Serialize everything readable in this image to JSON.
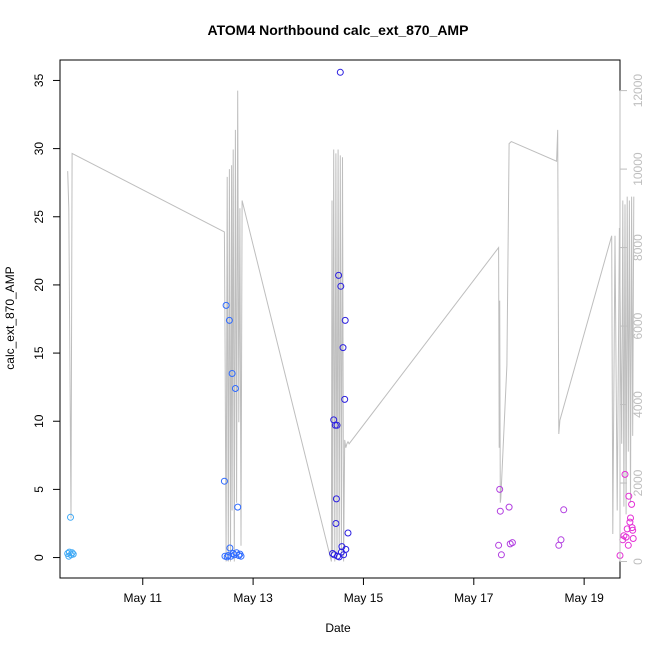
{
  "chart_data": {
    "type": "scatter",
    "title": "ATOM4 Northbound calc_ext_870_AMP",
    "xlabel": "Date",
    "ylabel": "calc_ext_870_AMP",
    "x_unit": "days since May 9 00:00",
    "xlim": [
      9.5,
      19.65
    ],
    "ylim": [
      -1.5,
      36.5
    ],
    "x_ticks": [
      {
        "value": 11,
        "label": "May 11"
      },
      {
        "value": 13,
        "label": "May 13"
      },
      {
        "value": 15,
        "label": "May 15"
      },
      {
        "value": 17,
        "label": "May 17"
      },
      {
        "value": 19,
        "label": "May 19"
      }
    ],
    "y_ticks": [
      0,
      5,
      10,
      15,
      20,
      25,
      30,
      35
    ],
    "y2_ticks": [
      0,
      2000,
      4000,
      6000,
      8000,
      10000,
      12000
    ],
    "y2_lim": [
      -420,
      12780
    ],
    "grid": false,
    "legend": "none",
    "colors": {
      "line": "#bebebe",
      "axis": "#000000",
      "axis2": "#bebebe"
    },
    "series": [
      {
        "name": "",
        "kind": "points",
        "points": [
          {
            "x": 9.64,
            "y": 0.3,
            "color": "#3fa9f5"
          },
          {
            "x": 9.66,
            "y": 0.1,
            "color": "#3fa9f5"
          },
          {
            "x": 9.67,
            "y": 0.4,
            "color": "#3fa9f5"
          },
          {
            "x": 9.69,
            "y": 2.95,
            "color": "#3fa9f5"
          },
          {
            "x": 9.7,
            "y": 0.2,
            "color": "#3fa9f5"
          },
          {
            "x": 9.72,
            "y": 0.35,
            "color": "#3fa9f5"
          },
          {
            "x": 9.74,
            "y": 0.25,
            "color": "#3fa9f5"
          },
          {
            "x": 12.48,
            "y": 5.6,
            "color": "#2f6bff"
          },
          {
            "x": 12.49,
            "y": 0.1,
            "color": "#2f6bff"
          },
          {
            "x": 12.51,
            "y": 18.5,
            "color": "#2f6bff"
          },
          {
            "x": 12.53,
            "y": 0.05,
            "color": "#2f6bff"
          },
          {
            "x": 12.55,
            "y": 0.15,
            "color": "#2f6bff"
          },
          {
            "x": 12.57,
            "y": 17.4,
            "color": "#2f6bff"
          },
          {
            "x": 12.58,
            "y": 0.7,
            "color": "#2f6bff"
          },
          {
            "x": 12.6,
            "y": 0.1,
            "color": "#2f6bff"
          },
          {
            "x": 12.62,
            "y": 13.5,
            "color": "#2f6bff"
          },
          {
            "x": 12.64,
            "y": 0.3,
            "color": "#2f6bff"
          },
          {
            "x": 12.66,
            "y": 0.2,
            "color": "#2f6bff"
          },
          {
            "x": 12.68,
            "y": 12.4,
            "color": "#2f6bff"
          },
          {
            "x": 12.7,
            "y": 0.35,
            "color": "#2f6bff"
          },
          {
            "x": 12.72,
            "y": 3.7,
            "color": "#2f6bff"
          },
          {
            "x": 12.74,
            "y": 0.15,
            "color": "#2f6bff"
          },
          {
            "x": 12.76,
            "y": 0.25,
            "color": "#2f6bff"
          },
          {
            "x": 12.78,
            "y": 0.1,
            "color": "#2f6bff"
          },
          {
            "x": 14.44,
            "y": 0.3,
            "color": "#2b1fe0"
          },
          {
            "x": 14.46,
            "y": 10.1,
            "color": "#2b1fe0"
          },
          {
            "x": 14.47,
            "y": 0.2,
            "color": "#2b1fe0"
          },
          {
            "x": 14.49,
            "y": 9.7,
            "color": "#2b1fe0"
          },
          {
            "x": 14.5,
            "y": 2.5,
            "color": "#2b1fe0"
          },
          {
            "x": 14.51,
            "y": 4.3,
            "color": "#2b1fe0"
          },
          {
            "x": 14.52,
            "y": 9.7,
            "color": "#2b1fe0"
          },
          {
            "x": 14.53,
            "y": 0.1,
            "color": "#2b1fe0"
          },
          {
            "x": 14.55,
            "y": 20.7,
            "color": "#2b1fe0"
          },
          {
            "x": 14.56,
            "y": 0.05,
            "color": "#2b1fe0"
          },
          {
            "x": 14.58,
            "y": 35.6,
            "color": "#2b1fe0"
          },
          {
            "x": 14.59,
            "y": 19.9,
            "color": "#2b1fe0"
          },
          {
            "x": 14.6,
            "y": 0.4,
            "color": "#2b1fe0"
          },
          {
            "x": 14.61,
            "y": 0.8,
            "color": "#2b1fe0"
          },
          {
            "x": 14.63,
            "y": 15.4,
            "color": "#2b1fe0"
          },
          {
            "x": 14.64,
            "y": 0.2,
            "color": "#2b1fe0"
          },
          {
            "x": 14.66,
            "y": 11.6,
            "color": "#2b1fe0"
          },
          {
            "x": 14.67,
            "y": 17.4,
            "color": "#2b1fe0"
          },
          {
            "x": 14.68,
            "y": 0.6,
            "color": "#2b1fe0"
          },
          {
            "x": 14.72,
            "y": 1.8,
            "color": "#2b1fe0"
          },
          {
            "x": 17.45,
            "y": 0.9,
            "color": "#b23fe0"
          },
          {
            "x": 17.47,
            "y": 5.0,
            "color": "#b23fe0"
          },
          {
            "x": 17.48,
            "y": 3.4,
            "color": "#b23fe0"
          },
          {
            "x": 17.5,
            "y": 0.2,
            "color": "#b23fe0"
          },
          {
            "x": 17.64,
            "y": 3.7,
            "color": "#b23fe0"
          },
          {
            "x": 17.66,
            "y": 1.0,
            "color": "#b23fe0"
          },
          {
            "x": 17.7,
            "y": 1.1,
            "color": "#b23fe0"
          },
          {
            "x": 18.54,
            "y": 0.9,
            "color": "#b23fe0"
          },
          {
            "x": 18.58,
            "y": 1.3,
            "color": "#b23fe0"
          },
          {
            "x": 18.63,
            "y": 3.5,
            "color": "#b23fe0"
          },
          {
            "x": 19.65,
            "y": 0.15,
            "color": "#e42fd6"
          },
          {
            "x": 19.7,
            "y": 1.3,
            "color": "#e42fd6"
          },
          {
            "x": 19.72,
            "y": 1.6,
            "color": "#e42fd6"
          },
          {
            "x": 19.74,
            "y": 6.1,
            "color": "#e42fd6"
          },
          {
            "x": 19.76,
            "y": 1.5,
            "color": "#e42fd6"
          },
          {
            "x": 19.78,
            "y": 2.1,
            "color": "#e42fd6"
          },
          {
            "x": 19.8,
            "y": 0.9,
            "color": "#e42fd6"
          },
          {
            "x": 19.81,
            "y": 4.5,
            "color": "#e42fd6"
          },
          {
            "x": 19.83,
            "y": 2.6,
            "color": "#e42fd6"
          },
          {
            "x": 19.84,
            "y": 2.9,
            "color": "#e42fd6"
          },
          {
            "x": 19.86,
            "y": 3.9,
            "color": "#e42fd6"
          },
          {
            "x": 19.87,
            "y": 2.2,
            "color": "#e42fd6"
          },
          {
            "x": 19.88,
            "y": 2.0,
            "color": "#e42fd6"
          },
          {
            "x": 19.89,
            "y": 1.4,
            "color": "#e42fd6"
          }
        ]
      },
      {
        "name": "",
        "kind": "line",
        "axis": "right",
        "x": [
          9.64,
          9.66,
          9.7,
          9.72,
          12.48,
          12.49,
          12.51,
          12.53,
          12.55,
          12.57,
          12.59,
          12.61,
          12.62,
          12.64,
          12.66,
          12.68,
          12.7,
          12.72,
          12.74,
          12.76,
          12.78,
          12.8,
          14.42,
          14.43,
          14.44,
          14.46,
          14.48,
          14.5,
          14.52,
          14.54,
          14.56,
          14.58,
          14.6,
          14.62,
          14.64,
          14.66,
          14.68,
          14.7,
          14.72,
          14.74,
          17.45,
          17.46,
          17.47,
          17.48,
          17.49,
          17.6,
          17.64,
          17.68,
          18.5,
          18.52,
          18.54,
          18.56,
          19.5,
          19.52,
          19.56,
          19.6,
          19.64,
          19.68,
          19.7,
          19.72,
          19.74,
          19.76,
          19.78,
          19.8,
          19.82,
          19.84,
          19.86,
          19.88,
          19.9
        ],
        "y": [
          9950,
          9000,
          1100,
          10400,
          8400,
          5800,
          0,
          9800,
          0,
          10000,
          0,
          10100,
          1300,
          10500,
          0,
          11000,
          1500,
          12000,
          3550,
          9000,
          400,
          9200,
          0,
          9200,
          200,
          10500,
          0,
          10400,
          100,
          10500,
          300,
          10350,
          200,
          10300,
          0,
          3100,
          2900,
          3000,
          3050,
          3000,
          8000,
          2900,
          6650,
          1500,
          1600,
          5000,
          10650,
          10700,
          10200,
          11000,
          3250,
          3600,
          8300,
          700,
          8300,
          1300,
          8500,
          3000,
          9200,
          1400,
          9100,
          1200,
          9300,
          2800,
          9200,
          1500,
          9300,
          3200,
          9300
        ]
      }
    ]
  }
}
